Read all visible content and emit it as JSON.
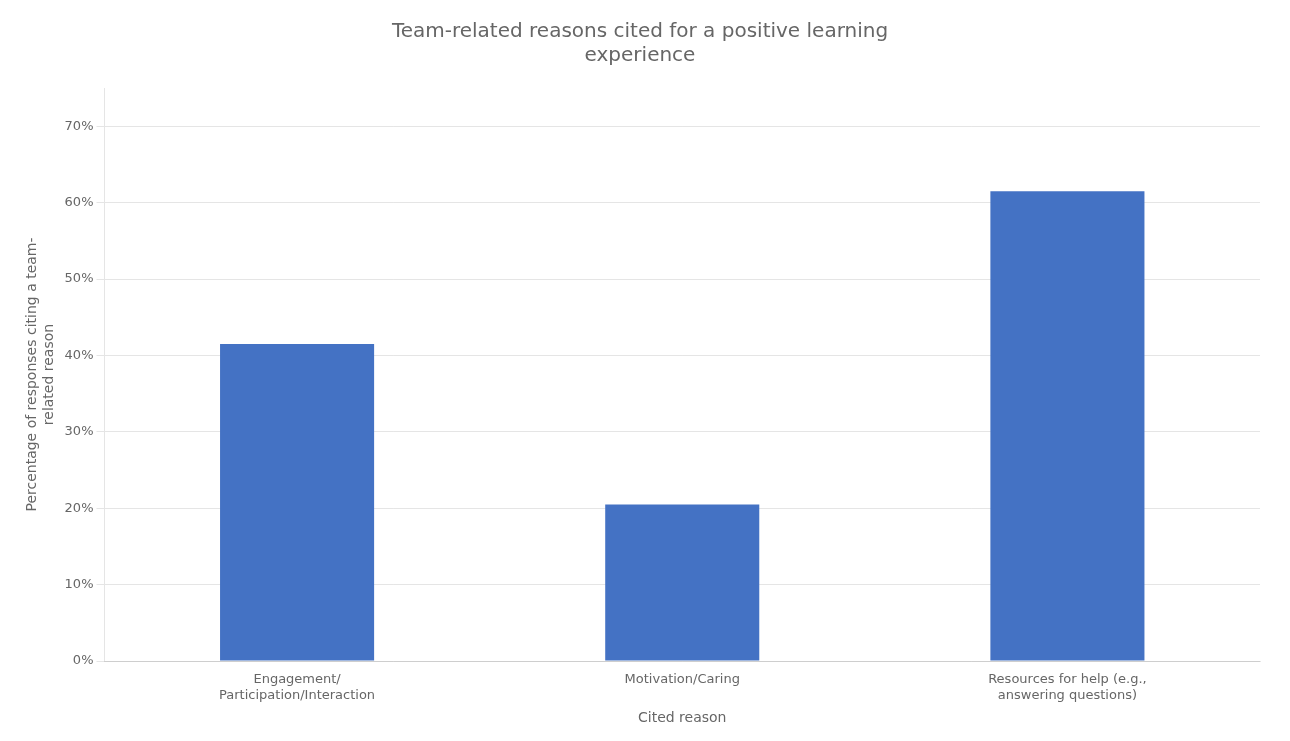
{
  "chart_data": {
    "type": "bar",
    "title": "Team-related reasons cited for a positive learning\nexperience",
    "xlabel": "Cited reason",
    "ylabel": "Percentage of responses citing a team-\nrelated reason",
    "categories": [
      "Engagement/\nParticipation/Interaction",
      "Motivation/Caring",
      "Resources for help (e.g.,\nanswering questions)"
    ],
    "values": [
      0.415,
      0.205,
      0.615
    ],
    "color": "#4472C4",
    "ylim": [
      0,
      0.75
    ],
    "yticks": [
      {
        "value": 0.0,
        "label": "0%"
      },
      {
        "value": 0.1,
        "label": "10%"
      },
      {
        "value": 0.2,
        "label": "20%"
      },
      {
        "value": 0.3,
        "label": "30%"
      },
      {
        "value": 0.4,
        "label": "40%"
      },
      {
        "value": 0.5,
        "label": "50%"
      },
      {
        "value": 0.6,
        "label": "60%"
      },
      {
        "value": 0.7,
        "label": "70%"
      }
    ],
    "grid": true
  }
}
